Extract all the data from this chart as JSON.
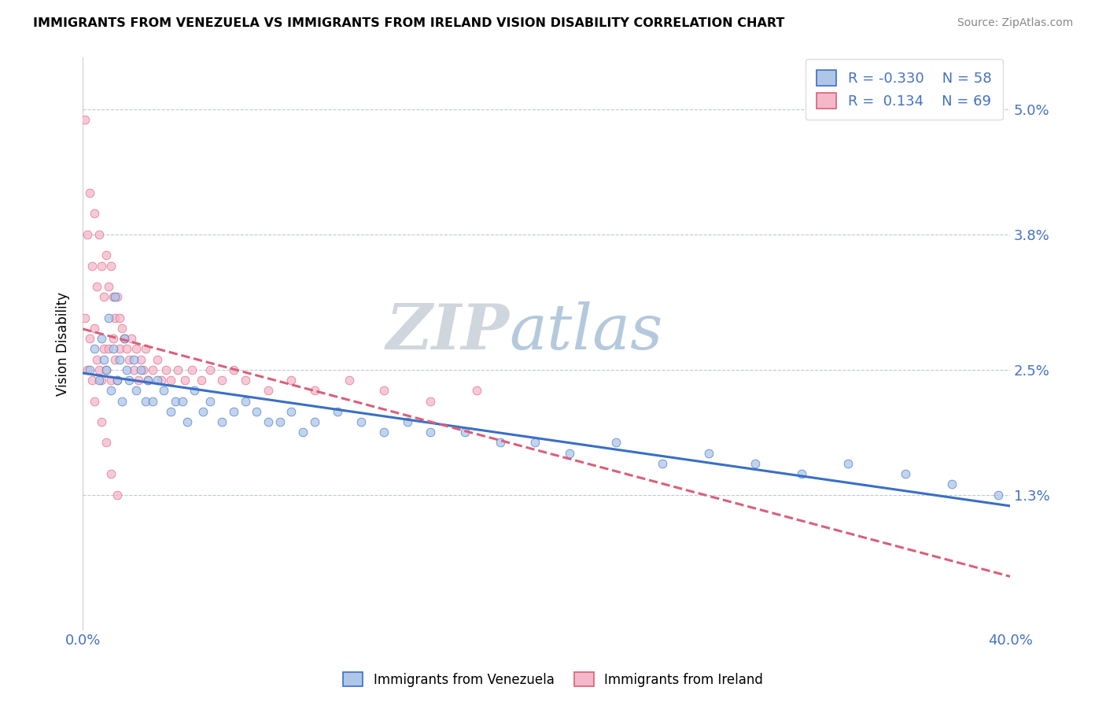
{
  "title": "IMMIGRANTS FROM VENEZUELA VS IMMIGRANTS FROM IRELAND VISION DISABILITY CORRELATION CHART",
  "source": "Source: ZipAtlas.com",
  "ylabel": "Vision Disability",
  "xlim": [
    0.0,
    0.4
  ],
  "ylim": [
    0.0,
    0.055
  ],
  "ytick_vals": [
    0.013,
    0.025,
    0.038,
    0.05
  ],
  "ytick_labels": [
    "1.3%",
    "2.5%",
    "3.8%",
    "5.0%"
  ],
  "venezuela_R": -0.33,
  "venezuela_N": 58,
  "ireland_R": 0.134,
  "ireland_N": 69,
  "venezuela_color": "#aec6e8",
  "ireland_color": "#f5b8cb",
  "venezuela_line_color": "#3a6fc4",
  "ireland_line_color": "#d9607a",
  "watermark_zip": "ZIP",
  "watermark_atlas": "atlas",
  "venezuela_scatter_x": [
    0.003,
    0.005,
    0.007,
    0.008,
    0.009,
    0.01,
    0.011,
    0.012,
    0.013,
    0.014,
    0.015,
    0.016,
    0.017,
    0.018,
    0.019,
    0.02,
    0.022,
    0.023,
    0.025,
    0.027,
    0.028,
    0.03,
    0.032,
    0.035,
    0.038,
    0.04,
    0.043,
    0.045,
    0.048,
    0.052,
    0.055,
    0.06,
    0.065,
    0.07,
    0.075,
    0.08,
    0.085,
    0.09,
    0.095,
    0.1,
    0.11,
    0.12,
    0.13,
    0.14,
    0.15,
    0.165,
    0.18,
    0.195,
    0.21,
    0.23,
    0.25,
    0.27,
    0.29,
    0.31,
    0.33,
    0.355,
    0.375,
    0.395
  ],
  "venezuela_scatter_y": [
    0.025,
    0.027,
    0.024,
    0.028,
    0.026,
    0.025,
    0.03,
    0.023,
    0.027,
    0.032,
    0.024,
    0.026,
    0.022,
    0.028,
    0.025,
    0.024,
    0.026,
    0.023,
    0.025,
    0.022,
    0.024,
    0.022,
    0.024,
    0.023,
    0.021,
    0.022,
    0.022,
    0.02,
    0.023,
    0.021,
    0.022,
    0.02,
    0.021,
    0.022,
    0.021,
    0.02,
    0.02,
    0.021,
    0.019,
    0.02,
    0.021,
    0.02,
    0.019,
    0.02,
    0.019,
    0.019,
    0.018,
    0.018,
    0.017,
    0.018,
    0.016,
    0.017,
    0.016,
    0.015,
    0.016,
    0.015,
    0.014,
    0.013
  ],
  "ireland_scatter_x": [
    0.001,
    0.001,
    0.002,
    0.002,
    0.003,
    0.003,
    0.004,
    0.004,
    0.005,
    0.005,
    0.006,
    0.006,
    0.007,
    0.007,
    0.008,
    0.008,
    0.009,
    0.009,
    0.01,
    0.01,
    0.011,
    0.011,
    0.012,
    0.012,
    0.013,
    0.013,
    0.014,
    0.014,
    0.015,
    0.015,
    0.016,
    0.016,
    0.017,
    0.018,
    0.019,
    0.02,
    0.021,
    0.022,
    0.023,
    0.024,
    0.025,
    0.026,
    0.027,
    0.028,
    0.03,
    0.032,
    0.034,
    0.036,
    0.038,
    0.041,
    0.044,
    0.047,
    0.051,
    0.055,
    0.06,
    0.065,
    0.07,
    0.08,
    0.09,
    0.1,
    0.115,
    0.13,
    0.15,
    0.17,
    0.005,
    0.008,
    0.01,
    0.012,
    0.015
  ],
  "ireland_scatter_y": [
    0.049,
    0.03,
    0.038,
    0.025,
    0.042,
    0.028,
    0.035,
    0.024,
    0.04,
    0.029,
    0.033,
    0.026,
    0.038,
    0.025,
    0.035,
    0.024,
    0.032,
    0.027,
    0.036,
    0.025,
    0.033,
    0.027,
    0.035,
    0.024,
    0.032,
    0.028,
    0.03,
    0.026,
    0.032,
    0.024,
    0.03,
    0.027,
    0.029,
    0.028,
    0.027,
    0.026,
    0.028,
    0.025,
    0.027,
    0.024,
    0.026,
    0.025,
    0.027,
    0.024,
    0.025,
    0.026,
    0.024,
    0.025,
    0.024,
    0.025,
    0.024,
    0.025,
    0.024,
    0.025,
    0.024,
    0.025,
    0.024,
    0.023,
    0.024,
    0.023,
    0.024,
    0.023,
    0.022,
    0.023,
    0.022,
    0.02,
    0.018,
    0.015,
    0.013
  ]
}
